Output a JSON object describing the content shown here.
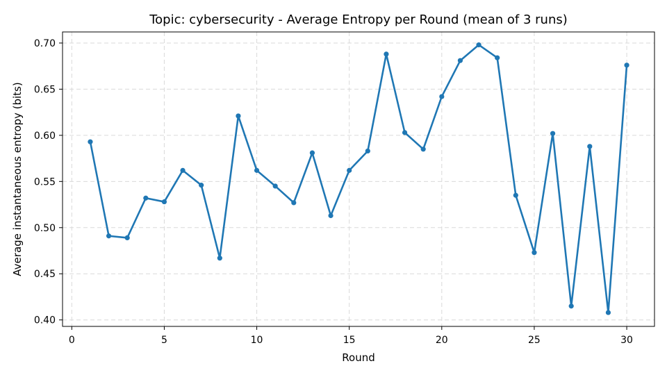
{
  "chart_data": {
    "type": "line",
    "title": "Topic: cybersecurity - Average Entropy per Round (mean of 3 runs)",
    "xlabel": "Round",
    "ylabel": "Average instantaneous entropy (bits)",
    "xlim": [
      -0.5,
      31.5
    ],
    "ylim": [
      0.393,
      0.712
    ],
    "xticks": [
      0,
      5,
      10,
      15,
      20,
      25,
      30
    ],
    "yticks": [
      0.4,
      0.45,
      0.5,
      0.55,
      0.6,
      0.65,
      0.7
    ],
    "grid": true,
    "legend": "none",
    "series": [
      {
        "color": "#1f77b4",
        "marker": "circle",
        "x": [
          1,
          2,
          3,
          4,
          5,
          6,
          7,
          8,
          9,
          10,
          11,
          12,
          13,
          14,
          15,
          16,
          17,
          18,
          19,
          20,
          21,
          22,
          23,
          24,
          25,
          26,
          27,
          28,
          29,
          30
        ],
        "y": [
          0.593,
          0.491,
          0.489,
          0.532,
          0.528,
          0.562,
          0.546,
          0.467,
          0.621,
          0.562,
          0.545,
          0.527,
          0.581,
          0.513,
          0.562,
          0.583,
          0.688,
          0.603,
          0.585,
          0.642,
          0.681,
          0.698,
          0.684,
          0.535,
          0.473,
          0.602,
          0.415,
          0.588,
          0.408,
          0.676
        ]
      }
    ]
  }
}
